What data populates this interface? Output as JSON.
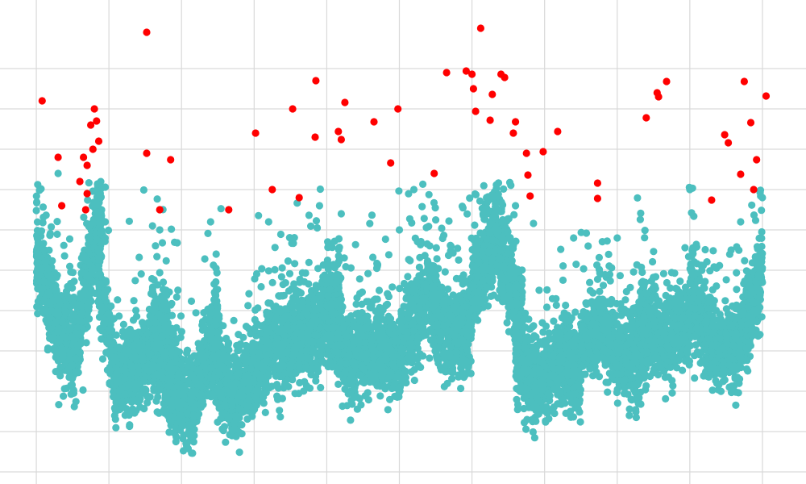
{
  "chart_data": {
    "type": "scatter",
    "title": "",
    "xlabel": "",
    "ylabel": "",
    "grid": true,
    "legend": "none",
    "xlim": [
      -0.5,
      10.6
    ],
    "ylim": [
      -0.15,
      5.85
    ],
    "x_gridlines": [
      0,
      1,
      2,
      3,
      4,
      5,
      6,
      7,
      8,
      9,
      10
    ],
    "y_gridlines": [
      0,
      0.5,
      1,
      1.5,
      2,
      2.5,
      3,
      3.5,
      4,
      4.5,
      5
    ],
    "colors": {
      "normal": "#4cbfbf",
      "anomaly": "#ff0000",
      "grid": "#d9d9d9"
    },
    "series": [
      {
        "kind": "normal",
        "color": "#4cbfbf",
        "segments": [
          {
            "x0": 0.0,
            "x1": 0.9,
            "center": [
              [
                0.0,
                2.7
              ],
              [
                0.3,
                1.8
              ],
              [
                0.55,
                1.5
              ],
              [
                0.75,
                2.6
              ],
              [
                0.9,
                3.2
              ]
            ],
            "spread": 0.45,
            "count": 1100
          },
          {
            "x0": 0.85,
            "x1": 2.0,
            "center": [
              [
                0.85,
                2.4
              ],
              [
                1.1,
                1.1
              ],
              [
                1.5,
                1.4
              ],
              [
                1.75,
                1.7
              ],
              [
                2.0,
                1.0
              ]
            ],
            "spread": 0.45,
            "count": 1000
          },
          {
            "x0": 1.6,
            "x1": 2.5,
            "center": [
              [
                1.6,
                1.6
              ],
              [
                1.9,
                0.9
              ],
              [
                2.15,
                0.8
              ],
              [
                2.4,
                1.6
              ],
              [
                2.5,
                2.0
              ]
            ],
            "spread": 0.45,
            "count": 800
          },
          {
            "x0": 2.4,
            "x1": 3.3,
            "center": [
              [
                2.4,
                1.4
              ],
              [
                2.7,
                0.9
              ],
              [
                3.0,
                1.2
              ],
              [
                3.3,
                1.7
              ]
            ],
            "spread": 0.45,
            "count": 800
          },
          {
            "x0": 3.3,
            "x1": 4.2,
            "center": [
              [
                3.3,
                1.5
              ],
              [
                3.6,
                1.7
              ],
              [
                3.9,
                1.8
              ],
              [
                4.2,
                2.1
              ]
            ],
            "spread": 0.5,
            "count": 900
          },
          {
            "x0": 4.0,
            "x1": 5.0,
            "center": [
              [
                4.0,
                1.9
              ],
              [
                4.3,
                1.4
              ],
              [
                4.6,
                1.6
              ],
              [
                5.0,
                1.4
              ]
            ],
            "spread": 0.45,
            "count": 900
          },
          {
            "x0": 5.0,
            "x1": 6.0,
            "center": [
              [
                5.0,
                1.5
              ],
              [
                5.4,
                2.2
              ],
              [
                5.7,
                1.6
              ],
              [
                6.0,
                1.9
              ]
            ],
            "spread": 0.5,
            "count": 900
          },
          {
            "x0": 6.0,
            "x1": 6.7,
            "center": [
              [
                6.0,
                2.3
              ],
              [
                6.35,
                2.9
              ],
              [
                6.7,
                1.8
              ]
            ],
            "spread": 0.5,
            "count": 700
          },
          {
            "x0": 6.6,
            "x1": 7.5,
            "center": [
              [
                6.6,
                1.4
              ],
              [
                6.9,
                1.1
              ],
              [
                7.2,
                1.4
              ],
              [
                7.5,
                1.2
              ]
            ],
            "spread": 0.45,
            "count": 800
          },
          {
            "x0": 7.5,
            "x1": 8.4,
            "center": [
              [
                7.5,
                1.6
              ],
              [
                7.8,
                1.8
              ],
              [
                8.1,
                1.3
              ],
              [
                8.4,
                1.5
              ]
            ],
            "spread": 0.45,
            "count": 800
          },
          {
            "x0": 8.3,
            "x1": 9.0,
            "center": [
              [
                8.3,
                2.0
              ],
              [
                8.6,
                1.6
              ],
              [
                9.0,
                1.8
              ]
            ],
            "spread": 0.45,
            "count": 600
          },
          {
            "x0": 9.0,
            "x1": 10.0,
            "center": [
              [
                9.0,
                2.2
              ],
              [
                9.3,
                1.6
              ],
              [
                9.6,
                1.5
              ],
              [
                9.8,
                1.9
              ],
              [
                10.0,
                2.4
              ]
            ],
            "spread": 0.45,
            "count": 900
          }
        ],
        "outliers": [
          [
            0.3,
            3.7
          ],
          [
            0.95,
            3.1
          ],
          [
            1.6,
            3.05
          ],
          [
            2.4,
            3.1
          ],
          [
            3.2,
            3.1
          ],
          [
            4.2,
            3.2
          ],
          [
            5.0,
            3.0
          ],
          [
            5.2,
            3.5
          ],
          [
            6.6,
            3.3
          ],
          [
            7.4,
            2.9
          ],
          [
            7.6,
            2.8
          ],
          [
            8.0,
            2.9
          ],
          [
            9.0,
            3.5
          ],
          [
            9.7,
            3.1
          ],
          [
            10.0,
            3.4
          ],
          [
            6.2,
            3.4
          ],
          [
            3.9,
            3.3
          ],
          [
            1.7,
            3.0
          ]
        ]
      },
      {
        "kind": "anomaly",
        "color": "#ff0000",
        "points": [
          [
            0.08,
            4.6
          ],
          [
            0.3,
            3.9
          ],
          [
            0.35,
            3.3
          ],
          [
            0.6,
            3.6
          ],
          [
            0.65,
            3.9
          ],
          [
            0.7,
            3.8
          ],
          [
            0.75,
            4.3
          ],
          [
            0.78,
            4.0
          ],
          [
            0.8,
            4.5
          ],
          [
            0.83,
            4.35
          ],
          [
            0.86,
            4.1
          ],
          [
            0.7,
            3.45
          ],
          [
            0.68,
            3.25
          ],
          [
            1.52,
            5.45
          ],
          [
            1.52,
            3.95
          ],
          [
            1.7,
            3.25
          ],
          [
            1.85,
            3.87
          ],
          [
            2.65,
            3.25
          ],
          [
            3.02,
            4.2
          ],
          [
            3.25,
            3.5
          ],
          [
            3.53,
            4.5
          ],
          [
            3.62,
            3.4
          ],
          [
            3.84,
            4.15
          ],
          [
            3.85,
            4.85
          ],
          [
            4.16,
            4.22
          ],
          [
            4.2,
            4.12
          ],
          [
            4.25,
            4.58
          ],
          [
            4.65,
            4.34
          ],
          [
            4.88,
            3.83
          ],
          [
            4.98,
            4.5
          ],
          [
            5.48,
            3.7
          ],
          [
            5.65,
            4.95
          ],
          [
            5.92,
            4.97
          ],
          [
            6.0,
            4.93
          ],
          [
            6.02,
            4.75
          ],
          [
            6.05,
            4.47
          ],
          [
            6.12,
            5.5
          ],
          [
            6.25,
            4.36
          ],
          [
            6.28,
            4.68
          ],
          [
            6.4,
            4.93
          ],
          [
            6.45,
            4.89
          ],
          [
            6.57,
            4.2
          ],
          [
            6.6,
            4.34
          ],
          [
            6.75,
            3.95
          ],
          [
            6.77,
            3.68
          ],
          [
            6.8,
            3.42
          ],
          [
            6.98,
            3.97
          ],
          [
            7.18,
            4.22
          ],
          [
            7.73,
            3.58
          ],
          [
            7.73,
            3.39
          ],
          [
            8.4,
            4.39
          ],
          [
            8.55,
            4.7
          ],
          [
            8.57,
            4.65
          ],
          [
            8.68,
            4.84
          ],
          [
            9.3,
            3.37
          ],
          [
            9.48,
            4.18
          ],
          [
            9.53,
            4.08
          ],
          [
            9.7,
            3.69
          ],
          [
            9.75,
            4.84
          ],
          [
            9.84,
            4.33
          ],
          [
            9.88,
            3.5
          ],
          [
            9.92,
            3.87
          ],
          [
            10.05,
            4.66
          ]
        ]
      }
    ]
  }
}
